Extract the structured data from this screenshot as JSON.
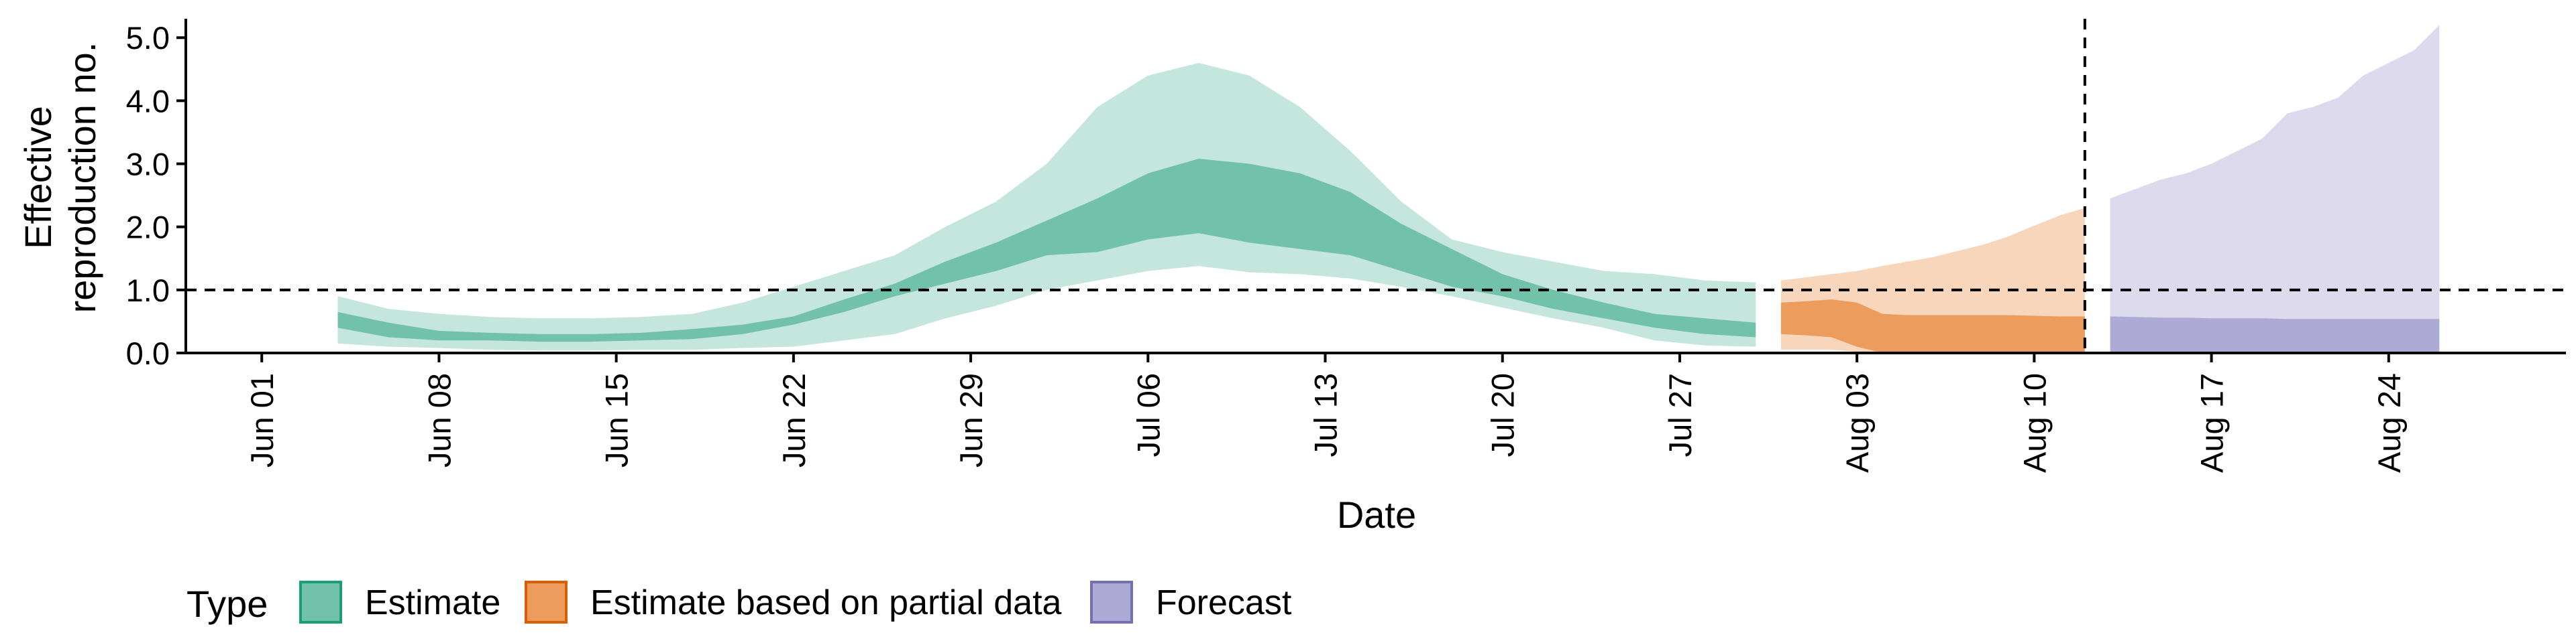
{
  "chart_data": {
    "type": "area",
    "title": "",
    "xlabel": "Date",
    "ylabel_lines": [
      "Effective",
      "reproduction no."
    ],
    "ylim": [
      0,
      5.3
    ],
    "yticks": [
      0,
      1,
      2,
      3,
      4,
      5
    ],
    "ytick_labels": [
      "0.0",
      "1.0",
      "2.0",
      "3.0",
      "4.0",
      "5.0"
    ],
    "x_range": [
      "2020-05-29",
      "2020-08-31"
    ],
    "xticks": [
      {
        "date": "2020-06-01",
        "label": "Jun 01"
      },
      {
        "date": "2020-06-08",
        "label": "Jun 08"
      },
      {
        "date": "2020-06-15",
        "label": "Jun 15"
      },
      {
        "date": "2020-06-22",
        "label": "Jun 22"
      },
      {
        "date": "2020-06-29",
        "label": "Jun 29"
      },
      {
        "date": "2020-07-06",
        "label": "Jul 06"
      },
      {
        "date": "2020-07-13",
        "label": "Jul 13"
      },
      {
        "date": "2020-07-20",
        "label": "Jul 20"
      },
      {
        "date": "2020-07-27",
        "label": "Jul 27"
      },
      {
        "date": "2020-08-03",
        "label": "Aug 03"
      },
      {
        "date": "2020-08-10",
        "label": "Aug 10"
      },
      {
        "date": "2020-08-17",
        "label": "Aug 17"
      },
      {
        "date": "2020-08-24",
        "label": "Aug 24"
      }
    ],
    "reference_lines": {
      "h": 1.0,
      "v": "2020-08-12"
    },
    "grid": false,
    "legend": {
      "placement": "bottom",
      "title": "Type",
      "entries": [
        {
          "label": "Estimate",
          "fill": "#72C2AA",
          "stroke": "#1B9E77"
        },
        {
          "label": "Estimate based on partial data",
          "fill": "#EC9C5C",
          "stroke": "#D95F02"
        },
        {
          "label": "Forecast",
          "fill": "#AEAAD6",
          "stroke": "#7570B3"
        }
      ]
    },
    "series": [
      {
        "type_label": "Estimate",
        "outer_color": "#C4E6DC",
        "inner_color": "#72C2AA",
        "x": [
          "2020-06-04",
          "2020-06-06",
          "2020-06-08",
          "2020-06-10",
          "2020-06-12",
          "2020-06-14",
          "2020-06-16",
          "2020-06-18",
          "2020-06-20",
          "2020-06-22",
          "2020-06-24",
          "2020-06-26",
          "2020-06-28",
          "2020-06-30",
          "2020-07-02",
          "2020-07-04",
          "2020-07-06",
          "2020-07-08",
          "2020-07-10",
          "2020-07-12",
          "2020-07-14",
          "2020-07-16",
          "2020-07-18",
          "2020-07-20",
          "2020-07-22",
          "2020-07-24",
          "2020-07-26",
          "2020-07-28",
          "2020-07-30"
        ],
        "outer_lower": [
          0.15,
          0.1,
          0.08,
          0.05,
          0.04,
          0.04,
          0.05,
          0.05,
          0.08,
          0.1,
          0.2,
          0.3,
          0.55,
          0.75,
          1.0,
          1.15,
          1.3,
          1.38,
          1.28,
          1.25,
          1.18,
          1.05,
          0.9,
          0.72,
          0.55,
          0.4,
          0.2,
          0.12,
          0.1
        ],
        "outer_upper": [
          0.9,
          0.7,
          0.62,
          0.57,
          0.55,
          0.55,
          0.57,
          0.62,
          0.8,
          1.05,
          1.3,
          1.55,
          2.0,
          2.4,
          3.0,
          3.9,
          4.4,
          4.6,
          4.4,
          3.9,
          3.2,
          2.4,
          1.8,
          1.6,
          1.45,
          1.3,
          1.25,
          1.15,
          1.12
        ],
        "inner_lower": [
          0.4,
          0.25,
          0.2,
          0.2,
          0.18,
          0.18,
          0.2,
          0.22,
          0.3,
          0.45,
          0.65,
          0.9,
          1.1,
          1.3,
          1.55,
          1.6,
          1.8,
          1.9,
          1.75,
          1.65,
          1.55,
          1.3,
          1.05,
          0.9,
          0.7,
          0.55,
          0.4,
          0.3,
          0.25
        ],
        "inner_upper": [
          0.65,
          0.48,
          0.35,
          0.32,
          0.3,
          0.3,
          0.32,
          0.38,
          0.45,
          0.58,
          0.85,
          1.1,
          1.45,
          1.75,
          2.1,
          2.45,
          2.85,
          3.08,
          3.0,
          2.85,
          2.55,
          2.05,
          1.65,
          1.25,
          1.0,
          0.8,
          0.62,
          0.55,
          0.48
        ]
      },
      {
        "type_label": "Estimate based on partial data",
        "outer_color": "#F7D6BC",
        "inner_color": "#EC9C5C",
        "x": [
          "2020-07-31",
          "2020-08-01",
          "2020-08-02",
          "2020-08-03",
          "2020-08-04",
          "2020-08-05",
          "2020-08-06",
          "2020-08-07",
          "2020-08-08",
          "2020-08-09",
          "2020-08-10",
          "2020-08-11",
          "2020-08-12"
        ],
        "outer_lower": [
          0.05,
          0.05,
          0.05,
          0.02,
          0.0,
          0.0,
          0.0,
          0.0,
          0.0,
          0.0,
          0.0,
          0.0,
          0.0
        ],
        "outer_upper": [
          1.15,
          1.2,
          1.25,
          1.3,
          1.38,
          1.45,
          1.52,
          1.62,
          1.72,
          1.85,
          2.02,
          2.18,
          2.3
        ],
        "inner_lower": [
          0.3,
          0.28,
          0.25,
          0.1,
          0.0,
          0.0,
          0.0,
          0.0,
          0.0,
          0.0,
          0.0,
          0.0,
          0.0
        ],
        "inner_upper": [
          0.8,
          0.82,
          0.85,
          0.8,
          0.62,
          0.6,
          0.6,
          0.6,
          0.6,
          0.6,
          0.59,
          0.58,
          0.58
        ]
      },
      {
        "type_label": "Forecast",
        "outer_color": "#DCDAEC",
        "inner_color": "#AEAAD6",
        "x": [
          "2020-08-13",
          "2020-08-14",
          "2020-08-15",
          "2020-08-16",
          "2020-08-17",
          "2020-08-18",
          "2020-08-19",
          "2020-08-20",
          "2020-08-21",
          "2020-08-22",
          "2020-08-23",
          "2020-08-24",
          "2020-08-25",
          "2020-08-26"
        ],
        "outer_lower": [
          0,
          0,
          0,
          0,
          0,
          0,
          0,
          0,
          0,
          0,
          0,
          0,
          0,
          0
        ],
        "outer_upper": [
          2.45,
          2.6,
          2.75,
          2.85,
          3.0,
          3.2,
          3.4,
          3.8,
          3.9,
          4.05,
          4.4,
          4.6,
          4.8,
          5.2
        ],
        "inner_lower": [
          0,
          0,
          0,
          0,
          0,
          0,
          0,
          0,
          0,
          0,
          0,
          0,
          0,
          0
        ],
        "inner_upper": [
          0.58,
          0.57,
          0.56,
          0.56,
          0.55,
          0.55,
          0.55,
          0.54,
          0.54,
          0.54,
          0.54,
          0.54,
          0.54,
          0.54
        ]
      }
    ]
  }
}
